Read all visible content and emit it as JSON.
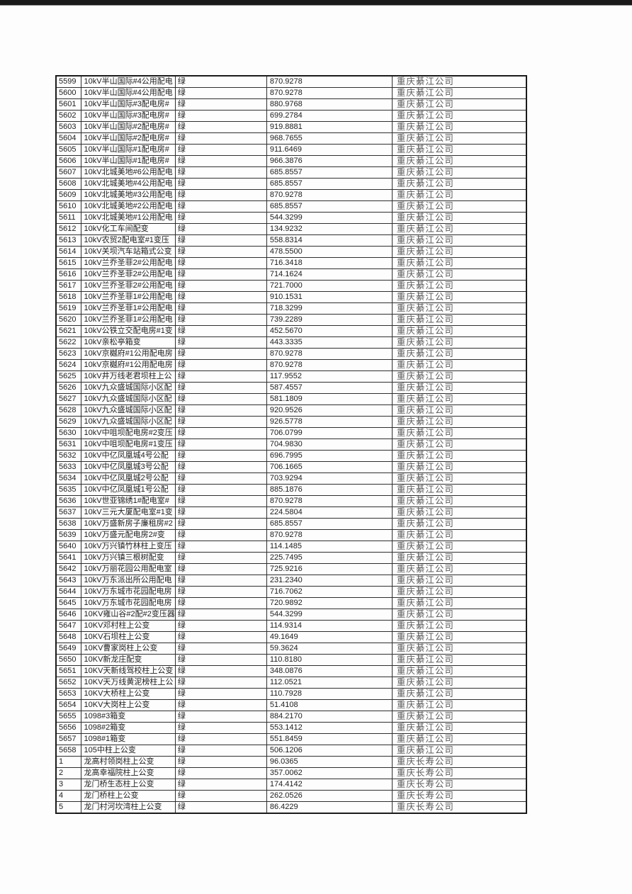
{
  "page": {
    "top_bar_color": "#1a1a1a",
    "background_color": "#fdfdfd"
  },
  "colors": {
    "table_border": "#2e2e2e",
    "cell_text": "#1d1d1d",
    "company_text": "#5a5a5a"
  },
  "table": {
    "status_label_all_rows": "绿",
    "companies": [
      "重庆綦江公司",
      "重庆长寿公司"
    ],
    "rows": [
      {
        "id": "5599",
        "name": "10kV半山国际#4公用配电",
        "status": "绿",
        "value": "870.9278",
        "company": "重庆綦江公司"
      },
      {
        "id": "5600",
        "name": "10kV半山国际#4公用配电",
        "status": "绿",
        "value": "870.9278",
        "company": "重庆綦江公司"
      },
      {
        "id": "5601",
        "name": "10kV半山国际#3配电房#",
        "status": "绿",
        "value": "880.9768",
        "company": "重庆綦江公司"
      },
      {
        "id": "5602",
        "name": "10kV半山国际#3配电房#",
        "status": "绿",
        "value": "699.2784",
        "company": "重庆綦江公司"
      },
      {
        "id": "5603",
        "name": "10kV半山国际#2配电房#",
        "status": "绿",
        "value": "919.8881",
        "company": "重庆綦江公司"
      },
      {
        "id": "5604",
        "name": "10kV半山国际#2配电房#",
        "status": "绿",
        "value": "968.7655",
        "company": "重庆綦江公司"
      },
      {
        "id": "5605",
        "name": "10kV半山国际#1配电房#",
        "status": "绿",
        "value": "911.6469",
        "company": "重庆綦江公司"
      },
      {
        "id": "5606",
        "name": "10kV半山国际#1配电房#",
        "status": "绿",
        "value": "966.3876",
        "company": "重庆綦江公司"
      },
      {
        "id": "5607",
        "name": "10kV北城美地#6公用配电",
        "status": "绿",
        "value": "685.8557",
        "company": "重庆綦江公司"
      },
      {
        "id": "5608",
        "name": "10kV北城美地#4公用配电",
        "status": "绿",
        "value": "685.8557",
        "company": "重庆綦江公司"
      },
      {
        "id": "5609",
        "name": "10kV北城美地#3公用配电",
        "status": "绿",
        "value": "870.9278",
        "company": "重庆綦江公司"
      },
      {
        "id": "5610",
        "name": "10kV北城美地#2公用配电",
        "status": "绿",
        "value": "685.8557",
        "company": "重庆綦江公司"
      },
      {
        "id": "5611",
        "name": "10kV北城美地#1公用配电",
        "status": "绿",
        "value": "544.3299",
        "company": "重庆綦江公司"
      },
      {
        "id": "5612",
        "name": "10kV化工车间配变",
        "status": "绿",
        "value": "134.9232",
        "company": "重庆綦江公司"
      },
      {
        "id": "5613",
        "name": "10kV农贸2配电室#1变压",
        "status": "绿",
        "value": "558.8314",
        "company": "重庆綦江公司"
      },
      {
        "id": "5614",
        "name": "10kV关坝汽车站箱式公变",
        "status": "绿",
        "value": "478.5500",
        "company": "重庆綦江公司"
      },
      {
        "id": "5615",
        "name": "10kV兰乔圣菲2#公用配电",
        "status": "绿",
        "value": "716.3418",
        "company": "重庆綦江公司"
      },
      {
        "id": "5616",
        "name": "10kV兰乔圣菲2#公用配电",
        "status": "绿",
        "value": "714.1624",
        "company": "重庆綦江公司"
      },
      {
        "id": "5617",
        "name": "10kV兰乔圣菲2#公用配电",
        "status": "绿",
        "value": "721.7000",
        "company": "重庆綦江公司"
      },
      {
        "id": "5618",
        "name": "10kV兰乔圣菲1#公用配电",
        "status": "绿",
        "value": "910.1531",
        "company": "重庆綦江公司"
      },
      {
        "id": "5619",
        "name": "10kV兰乔圣菲1#公用配电",
        "status": "绿",
        "value": "718.3299",
        "company": "重庆綦江公司"
      },
      {
        "id": "5620",
        "name": "10kV兰乔圣菲1#公用配电",
        "status": "绿",
        "value": "739.2289",
        "company": "重庆綦江公司"
      },
      {
        "id": "5621",
        "name": "10kV公铁立交配电房#1变",
        "status": "绿",
        "value": "452.5670",
        "company": "重庆綦江公司"
      },
      {
        "id": "5622",
        "name": "10kV亲松亭箱变",
        "status": "绿",
        "value": "443.3335",
        "company": "重庆綦江公司"
      },
      {
        "id": "5623",
        "name": "10kV京樾府#1公用配电房",
        "status": "绿",
        "value": "870.9278",
        "company": "重庆綦江公司"
      },
      {
        "id": "5624",
        "name": "10kV京樾府#1公用配电房",
        "status": "绿",
        "value": "870.9278",
        "company": "重庆綦江公司"
      },
      {
        "id": "5625",
        "name": "10kV井万线老君坝柱上公",
        "status": "绿",
        "value": "117.9552",
        "company": "重庆綦江公司"
      },
      {
        "id": "5626",
        "name": "10kV九众盛城国际小区配",
        "status": "绿",
        "value": "587.4557",
        "company": "重庆綦江公司"
      },
      {
        "id": "5627",
        "name": "10kV九众盛城国际小区配",
        "status": "绿",
        "value": "581.1809",
        "company": "重庆綦江公司"
      },
      {
        "id": "5628",
        "name": "10kV九众盛城国际小区配",
        "status": "绿",
        "value": "920.9526",
        "company": "重庆綦江公司"
      },
      {
        "id": "5629",
        "name": "10kV九众盛城国际小区配",
        "status": "绿",
        "value": "926.5778",
        "company": "重庆綦江公司"
      },
      {
        "id": "5630",
        "name": "10kV中咀坝配电房#2变压",
        "status": "绿",
        "value": "706.0799",
        "company": "重庆綦江公司"
      },
      {
        "id": "5631",
        "name": "10kV中咀坝配电房#1变压",
        "status": "绿",
        "value": "704.9830",
        "company": "重庆綦江公司"
      },
      {
        "id": "5632",
        "name": "10kV中亿凤凰城4号公配",
        "status": "绿",
        "value": "696.7995",
        "company": "重庆綦江公司"
      },
      {
        "id": "5633",
        "name": "10kV中亿凤凰城3号公配",
        "status": "绿",
        "value": "706.1665",
        "company": "重庆綦江公司"
      },
      {
        "id": "5634",
        "name": "10kV中亿凤凰城2号公配",
        "status": "绿",
        "value": "703.9294",
        "company": "重庆綦江公司"
      },
      {
        "id": "5635",
        "name": "10kV中亿凤凰城1号公配",
        "status": "绿",
        "value": "885.1876",
        "company": "重庆綦江公司"
      },
      {
        "id": "5636",
        "name": "10kV世亚锦绣1#配电室#",
        "status": "绿",
        "value": "870.9278",
        "company": "重庆綦江公司"
      },
      {
        "id": "5637",
        "name": "10kV三元大厦配电室#1变",
        "status": "绿",
        "value": "224.5804",
        "company": "重庆綦江公司"
      },
      {
        "id": "5638",
        "name": "10kV万盛新房子廉租房#2",
        "status": "绿",
        "value": "685.8557",
        "company": "重庆綦江公司"
      },
      {
        "id": "5639",
        "name": "10kV万盛元配电房2#变",
        "status": "绿",
        "value": "870.9278",
        "company": "重庆綦江公司"
      },
      {
        "id": "5640",
        "name": "10kV万兴镇竹林柱上变压",
        "status": "绿",
        "value": "114.1485",
        "company": "重庆綦江公司"
      },
      {
        "id": "5641",
        "name": "10kV万兴镇三根树配变",
        "status": "绿",
        "value": "225.7495",
        "company": "重庆綦江公司"
      },
      {
        "id": "5642",
        "name": "10kV万丽花园公用配电室",
        "status": "绿",
        "value": "725.9216",
        "company": "重庆綦江公司"
      },
      {
        "id": "5643",
        "name": "10kV万东派出所公用配电",
        "status": "绿",
        "value": "231.2340",
        "company": "重庆綦江公司"
      },
      {
        "id": "5644",
        "name": "10kV万东城市花园配电房",
        "status": "绿",
        "value": "716.7062",
        "company": "重庆綦江公司"
      },
      {
        "id": "5645",
        "name": "10kV万东城市花园配电房",
        "status": "绿",
        "value": "720.9892",
        "company": "重庆綦江公司"
      },
      {
        "id": "5646",
        "name": "10KV雍山谷#2配#2变压器",
        "status": "绿",
        "value": "544.3299",
        "company": "重庆綦江公司"
      },
      {
        "id": "5647",
        "name": "10KV邓村柱上公变",
        "status": "绿",
        "value": "114.9314",
        "company": "重庆綦江公司"
      },
      {
        "id": "5648",
        "name": "10KV石坝柱上公变",
        "status": "绿",
        "value": "49.1649",
        "company": "重庆綦江公司"
      },
      {
        "id": "5649",
        "name": "10KV曹家岗柱上公变",
        "status": "绿",
        "value": "59.3624",
        "company": "重庆綦江公司"
      },
      {
        "id": "5650",
        "name": "10KV新龙庄配变",
        "status": "绿",
        "value": "110.8180",
        "company": "重庆綦江公司"
      },
      {
        "id": "5651",
        "name": "10KV天新线驾校柱上公变",
        "status": "绿",
        "value": "348.0876",
        "company": "重庆綦江公司"
      },
      {
        "id": "5652",
        "name": "10KV天万线黄泥榜柱上公",
        "status": "绿",
        "value": "112.0521",
        "company": "重庆綦江公司"
      },
      {
        "id": "5653",
        "name": "10KV大桥柱上公变",
        "status": "绿",
        "value": "110.7928",
        "company": "重庆綦江公司"
      },
      {
        "id": "5654",
        "name": "10KV大岗柱上公变",
        "status": "绿",
        "value": "51.4108",
        "company": "重庆綦江公司"
      },
      {
        "id": "5655",
        "name": "1098#3箱变",
        "status": "绿",
        "value": "884.2170",
        "company": "重庆綦江公司"
      },
      {
        "id": "5656",
        "name": "1098#2箱变",
        "status": "绿",
        "value": "553.1412",
        "company": "重庆綦江公司"
      },
      {
        "id": "5657",
        "name": "1098#1箱变",
        "status": "绿",
        "value": "551.8459",
        "company": "重庆綦江公司"
      },
      {
        "id": "5658",
        "name": "105中柱上公变",
        "status": "绿",
        "value": "506.1206",
        "company": "重庆綦江公司"
      },
      {
        "id": "1",
        "name": "龙高村领岗柱上公变",
        "status": "绿",
        "value": "96.0365",
        "company": "重庆长寿公司"
      },
      {
        "id": "2",
        "name": "龙高幸福院柱上公变",
        "status": "绿",
        "value": "357.0062",
        "company": "重庆长寿公司"
      },
      {
        "id": "3",
        "name": "龙门桥生态柱上公变",
        "status": "绿",
        "value": "174.4142",
        "company": "重庆长寿公司"
      },
      {
        "id": "4",
        "name": "龙门桥柱上公变",
        "status": "绿",
        "value": "262.0526",
        "company": "重庆长寿公司"
      },
      {
        "id": "5",
        "name": "龙门村河坎湾柱上公变",
        "status": "绿",
        "value": "86.4229",
        "company": "重庆长寿公司"
      }
    ]
  }
}
